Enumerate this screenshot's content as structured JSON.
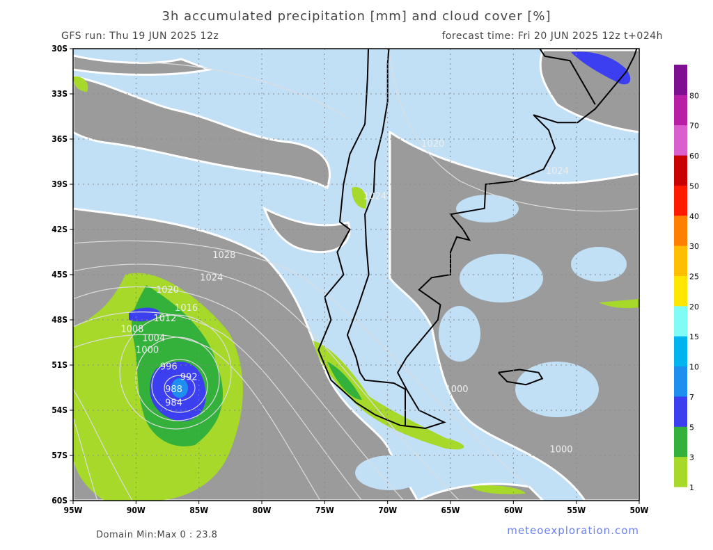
{
  "header": {
    "title": "3h accumulated precipitation [mm] and cloud cover [%]",
    "run": "GFS run: Thu 19 JUN 2025 12z",
    "forecast": "forecast time: Fri 20 JUN 2025 12z  t+024h"
  },
  "map": {
    "lat_ticks": [
      {
        "value": -30,
        "label": "30S"
      },
      {
        "value": -33,
        "label": "33S"
      },
      {
        "value": -36,
        "label": "36S"
      },
      {
        "value": -39,
        "label": "39S"
      },
      {
        "value": -42,
        "label": "42S"
      },
      {
        "value": -45,
        "label": "45S"
      },
      {
        "value": -48,
        "label": "48S"
      },
      {
        "value": -51,
        "label": "51S"
      },
      {
        "value": -54,
        "label": "54S"
      },
      {
        "value": -57,
        "label": "57S"
      },
      {
        "value": -60,
        "label": "60S"
      }
    ],
    "lon_ticks": [
      {
        "value": -95,
        "label": "95W"
      },
      {
        "value": -90,
        "label": "90W"
      },
      {
        "value": -85,
        "label": "85W"
      },
      {
        "value": -80,
        "label": "80W"
      },
      {
        "value": -75,
        "label": "75W"
      },
      {
        "value": -70,
        "label": "70W"
      },
      {
        "value": -65,
        "label": "65W"
      },
      {
        "value": -60,
        "label": "60W"
      },
      {
        "value": -55,
        "label": "55W"
      },
      {
        "value": -50,
        "label": "50W"
      }
    ],
    "isobar_labels": [
      "1028",
      "1024",
      "1020",
      "1016",
      "1012",
      "1008",
      "1004",
      "1000",
      "996",
      "992",
      "988",
      "984",
      "1020",
      "1024",
      "1024",
      "1000",
      "1000"
    ]
  },
  "colorbar": {
    "levels": [
      1,
      3,
      5,
      7,
      10,
      15,
      20,
      25,
      30,
      40,
      50,
      60,
      70,
      80
    ],
    "colors": [
      "#a6d92a",
      "#33b13b",
      "#3b3ff0",
      "#1e8ff0",
      "#00b4f0",
      "#7ffcf6",
      "#ffe600",
      "#ffbf00",
      "#ff7f00",
      "#ff1a00",
      "#c80000",
      "#d95fcc",
      "#b91fa5",
      "#7e0f93"
    ]
  },
  "footer": {
    "domain": "Domain Min:Max 0 : 23.8",
    "brand": "meteoexploration.com"
  }
}
